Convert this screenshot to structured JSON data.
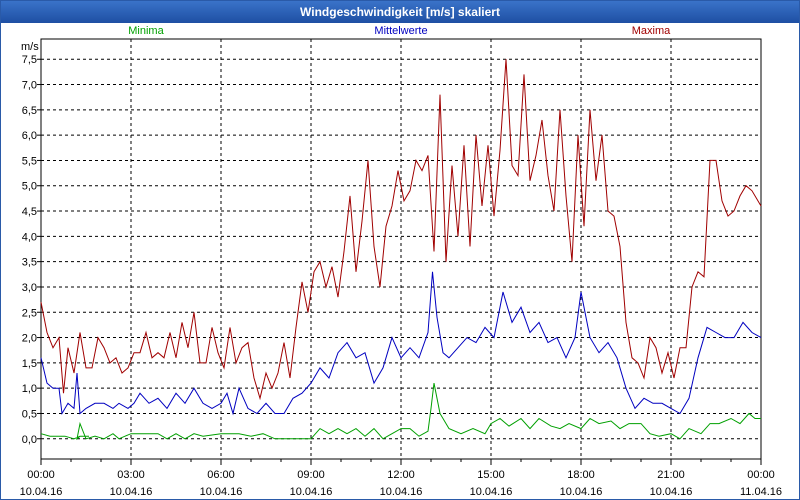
{
  "chart_data": {
    "type": "line",
    "title": "Windgeschwindigkeit [m/s] skaliert",
    "ylabel": "m/s",
    "ylim": [
      -0.4,
      7.9
    ],
    "yticks": [
      "0,0",
      "0,5",
      "1,0",
      "1,5",
      "2,0",
      "2,5",
      "3,0",
      "3,5",
      "4,0",
      "4,5",
      "5,0",
      "5,5",
      "6,0",
      "6,5",
      "7,0",
      "7,5"
    ],
    "ytick_values": [
      0,
      0.5,
      1,
      1.5,
      2,
      2.5,
      3,
      3.5,
      4,
      4.5,
      5,
      5.5,
      6,
      6.5,
      7,
      7.5
    ],
    "xlim": [
      0,
      24
    ],
    "xticks": [
      {
        "x": 0,
        "time": "00:00",
        "date": "10.04.16"
      },
      {
        "x": 3,
        "time": "03:00",
        "date": "10.04.16"
      },
      {
        "x": 6,
        "time": "06:00",
        "date": "10.04.16"
      },
      {
        "x": 9,
        "time": "09:00",
        "date": "10.04.16"
      },
      {
        "x": 12,
        "time": "12:00",
        "date": "10.04.16"
      },
      {
        "x": 15,
        "time": "15:00",
        "date": "10.04.16"
      },
      {
        "x": 18,
        "time": "18:00",
        "date": "10.04.16"
      },
      {
        "x": 21,
        "time": "21:00",
        "date": "10.04.16"
      },
      {
        "x": 24,
        "time": "00:00",
        "date": "11.04.16"
      }
    ],
    "grid": true,
    "legend": "top",
    "series": [
      {
        "name": "Minima",
        "color": "#00a000",
        "points": [
          [
            0,
            0.1
          ],
          [
            0.3,
            0.05
          ],
          [
            0.8,
            0.05
          ],
          [
            1.1,
            0
          ],
          [
            1.3,
            0.05
          ],
          [
            1.6,
            0.05
          ],
          [
            1.3,
            0.05
          ],
          [
            1.2,
            0
          ],
          [
            1.3,
            0.3
          ],
          [
            1.5,
            0
          ],
          [
            1.8,
            0.05
          ],
          [
            2.1,
            0
          ],
          [
            2.4,
            0.1
          ],
          [
            2.6,
            0
          ],
          [
            2.8,
            0.05
          ],
          [
            3,
            0.1
          ],
          [
            3.6,
            0.1
          ],
          [
            3.9,
            0.1
          ],
          [
            4.2,
            0
          ],
          [
            4.5,
            0.1
          ],
          [
            4.8,
            0
          ],
          [
            5.1,
            0.1
          ],
          [
            5.4,
            0.05
          ],
          [
            6,
            0.1
          ],
          [
            6.6,
            0.1
          ],
          [
            7,
            0.05
          ],
          [
            7.4,
            0.1
          ],
          [
            7.8,
            0
          ],
          [
            8.4,
            0
          ],
          [
            9,
            0
          ],
          [
            9.3,
            0.2
          ],
          [
            9.6,
            0.1
          ],
          [
            9.9,
            0.2
          ],
          [
            10.2,
            0.1
          ],
          [
            10.5,
            0.2
          ],
          [
            10.8,
            0.05
          ],
          [
            11.1,
            0.2
          ],
          [
            11.4,
            0
          ],
          [
            11.7,
            0.1
          ],
          [
            12,
            0.2
          ],
          [
            12.3,
            0.2
          ],
          [
            12.6,
            0.05
          ],
          [
            12.9,
            0.15
          ],
          [
            13.0,
            0.6
          ],
          [
            13.1,
            1.1
          ],
          [
            13.3,
            0.5
          ],
          [
            13.6,
            0.2
          ],
          [
            14,
            0.1
          ],
          [
            14.4,
            0.2
          ],
          [
            14.8,
            0.1
          ],
          [
            15,
            0.3
          ],
          [
            15.3,
            0.4
          ],
          [
            15.6,
            0.25
          ],
          [
            16,
            0.4
          ],
          [
            16.3,
            0.2
          ],
          [
            16.6,
            0.4
          ],
          [
            17,
            0.25
          ],
          [
            17.3,
            0.2
          ],
          [
            17.6,
            0.3
          ],
          [
            18,
            0.2
          ],
          [
            18.3,
            0.4
          ],
          [
            18.6,
            0.3
          ],
          [
            19,
            0.35
          ],
          [
            19.3,
            0.2
          ],
          [
            19.6,
            0.3
          ],
          [
            20,
            0.3
          ],
          [
            20.3,
            0.1
          ],
          [
            20.6,
            0.05
          ],
          [
            21,
            0.1
          ],
          [
            21.3,
            0
          ],
          [
            21.6,
            0.2
          ],
          [
            22,
            0.1
          ],
          [
            22.3,
            0.3
          ],
          [
            22.6,
            0.3
          ],
          [
            23,
            0.4
          ],
          [
            23.3,
            0.3
          ],
          [
            23.6,
            0.5
          ],
          [
            23.8,
            0.4
          ],
          [
            24,
            0.4
          ]
        ]
      },
      {
        "name": "Mittelwerte",
        "color": "#0000c0",
        "points": [
          [
            0,
            1.6
          ],
          [
            0.2,
            1.1
          ],
          [
            0.4,
            1.0
          ],
          [
            0.6,
            1.0
          ],
          [
            0.7,
            0.5
          ],
          [
            0.9,
            0.7
          ],
          [
            1.1,
            0.6
          ],
          [
            1.2,
            1.3
          ],
          [
            1.3,
            0.5
          ],
          [
            1.5,
            0.6
          ],
          [
            1.8,
            0.7
          ],
          [
            2.1,
            0.7
          ],
          [
            2.4,
            0.6
          ],
          [
            2.6,
            0.7
          ],
          [
            2.9,
            0.6
          ],
          [
            3.1,
            0.7
          ],
          [
            3.3,
            0.9
          ],
          [
            3.6,
            0.7
          ],
          [
            3.9,
            0.8
          ],
          [
            4.2,
            0.6
          ],
          [
            4.5,
            0.9
          ],
          [
            4.8,
            0.7
          ],
          [
            5.1,
            1.0
          ],
          [
            5.4,
            0.7
          ],
          [
            5.7,
            0.6
          ],
          [
            6.0,
            0.7
          ],
          [
            6.2,
            0.9
          ],
          [
            6.4,
            0.5
          ],
          [
            6.6,
            1.0
          ],
          [
            6.9,
            0.6
          ],
          [
            7.2,
            0.5
          ],
          [
            7.5,
            0.7
          ],
          [
            7.8,
            0.5
          ],
          [
            8.1,
            0.5
          ],
          [
            8.4,
            0.8
          ],
          [
            8.7,
            0.9
          ],
          [
            9,
            1.1
          ],
          [
            9.3,
            1.4
          ],
          [
            9.6,
            1.2
          ],
          [
            9.9,
            1.7
          ],
          [
            10.2,
            1.9
          ],
          [
            10.5,
            1.6
          ],
          [
            10.8,
            1.7
          ],
          [
            11.1,
            1.1
          ],
          [
            11.4,
            1.4
          ],
          [
            11.7,
            2.0
          ],
          [
            12,
            1.6
          ],
          [
            12.3,
            1.8
          ],
          [
            12.6,
            1.6
          ],
          [
            12.9,
            2.1
          ],
          [
            13.05,
            3.3
          ],
          [
            13.2,
            2.4
          ],
          [
            13.4,
            1.7
          ],
          [
            13.6,
            1.6
          ],
          [
            13.9,
            1.8
          ],
          [
            14.2,
            2.0
          ],
          [
            14.5,
            1.9
          ],
          [
            14.8,
            2.2
          ],
          [
            15.1,
            2.0
          ],
          [
            15.4,
            2.9
          ],
          [
            15.7,
            2.3
          ],
          [
            16,
            2.6
          ],
          [
            16.3,
            2.1
          ],
          [
            16.6,
            2.3
          ],
          [
            16.9,
            1.9
          ],
          [
            17.2,
            2.0
          ],
          [
            17.5,
            1.6
          ],
          [
            17.8,
            2.0
          ],
          [
            18.0,
            2.9
          ],
          [
            18.3,
            2.0
          ],
          [
            18.6,
            1.7
          ],
          [
            18.9,
            1.9
          ],
          [
            19.2,
            1.6
          ],
          [
            19.5,
            1.0
          ],
          [
            19.8,
            0.6
          ],
          [
            20.1,
            0.8
          ],
          [
            20.4,
            0.7
          ],
          [
            20.7,
            0.7
          ],
          [
            21,
            0.6
          ],
          [
            21.3,
            0.5
          ],
          [
            21.6,
            0.8
          ],
          [
            21.9,
            1.6
          ],
          [
            22.2,
            2.2
          ],
          [
            22.5,
            2.1
          ],
          [
            22.8,
            2.0
          ],
          [
            23.1,
            2.0
          ],
          [
            23.4,
            2.3
          ],
          [
            23.7,
            2.1
          ],
          [
            24,
            2.0
          ]
        ]
      },
      {
        "name": "Maxima",
        "color": "#a00000",
        "points": [
          [
            0,
            2.7
          ],
          [
            0.2,
            2.1
          ],
          [
            0.4,
            1.8
          ],
          [
            0.6,
            2.0
          ],
          [
            0.75,
            0.9
          ],
          [
            0.9,
            1.8
          ],
          [
            1.1,
            1.3
          ],
          [
            1.3,
            2.1
          ],
          [
            1.5,
            1.4
          ],
          [
            1.7,
            1.4
          ],
          [
            1.9,
            2.0
          ],
          [
            2.1,
            1.8
          ],
          [
            2.3,
            1.5
          ],
          [
            2.5,
            1.6
          ],
          [
            2.7,
            1.3
          ],
          [
            2.9,
            1.4
          ],
          [
            3.1,
            1.7
          ],
          [
            3.3,
            1.7
          ],
          [
            3.5,
            2.1
          ],
          [
            3.7,
            1.6
          ],
          [
            3.9,
            1.7
          ],
          [
            4.1,
            1.6
          ],
          [
            4.3,
            2.1
          ],
          [
            4.5,
            1.6
          ],
          [
            4.7,
            2.3
          ],
          [
            4.9,
            1.8
          ],
          [
            5.1,
            2.5
          ],
          [
            5.3,
            1.5
          ],
          [
            5.5,
            1.5
          ],
          [
            5.7,
            2.2
          ],
          [
            5.9,
            1.7
          ],
          [
            6.1,
            1.4
          ],
          [
            6.3,
            2.2
          ],
          [
            6.5,
            1.5
          ],
          [
            6.7,
            1.8
          ],
          [
            6.9,
            1.9
          ],
          [
            7.1,
            1.2
          ],
          [
            7.3,
            0.8
          ],
          [
            7.5,
            1.3
          ],
          [
            7.7,
            1.0
          ],
          [
            7.9,
            1.3
          ],
          [
            8.1,
            1.9
          ],
          [
            8.3,
            1.2
          ],
          [
            8.5,
            2.2
          ],
          [
            8.7,
            3.1
          ],
          [
            8.9,
            2.5
          ],
          [
            9.1,
            3.3
          ],
          [
            9.3,
            3.5
          ],
          [
            9.5,
            3.0
          ],
          [
            9.7,
            3.4
          ],
          [
            9.9,
            2.8
          ],
          [
            10.1,
            3.7
          ],
          [
            10.3,
            4.8
          ],
          [
            10.5,
            3.3
          ],
          [
            10.7,
            4.3
          ],
          [
            10.9,
            5.5
          ],
          [
            11.1,
            3.8
          ],
          [
            11.3,
            3.0
          ],
          [
            11.5,
            4.2
          ],
          [
            11.7,
            4.6
          ],
          [
            11.9,
            5.3
          ],
          [
            12.1,
            4.7
          ],
          [
            12.3,
            4.9
          ],
          [
            12.5,
            5.5
          ],
          [
            12.7,
            5.3
          ],
          [
            12.9,
            5.6
          ],
          [
            13.1,
            3.7
          ],
          [
            13.3,
            6.8
          ],
          [
            13.5,
            3.5
          ],
          [
            13.7,
            5.4
          ],
          [
            13.9,
            4.0
          ],
          [
            14.1,
            5.8
          ],
          [
            14.3,
            3.8
          ],
          [
            14.5,
            6.0
          ],
          [
            14.7,
            4.6
          ],
          [
            14.9,
            5.8
          ],
          [
            15.1,
            4.4
          ],
          [
            15.3,
            5.7
          ],
          [
            15.5,
            7.5
          ],
          [
            15.7,
            5.4
          ],
          [
            15.9,
            5.2
          ],
          [
            16.1,
            7.2
          ],
          [
            16.3,
            5.1
          ],
          [
            16.5,
            5.6
          ],
          [
            16.7,
            6.3
          ],
          [
            16.9,
            5.2
          ],
          [
            17.1,
            4.5
          ],
          [
            17.3,
            6.5
          ],
          [
            17.5,
            4.8
          ],
          [
            17.7,
            3.5
          ],
          [
            17.9,
            6.0
          ],
          [
            18.1,
            4.2
          ],
          [
            18.3,
            6.5
          ],
          [
            18.5,
            5.1
          ],
          [
            18.7,
            6.0
          ],
          [
            18.9,
            4.5
          ],
          [
            19.1,
            4.4
          ],
          [
            19.3,
            3.8
          ],
          [
            19.5,
            2.3
          ],
          [
            19.7,
            1.6
          ],
          [
            19.9,
            1.5
          ],
          [
            20.1,
            1.2
          ],
          [
            20.3,
            2.0
          ],
          [
            20.5,
            1.8
          ],
          [
            20.7,
            1.3
          ],
          [
            20.9,
            1.7
          ],
          [
            21.1,
            1.2
          ],
          [
            21.3,
            1.8
          ],
          [
            21.5,
            1.8
          ],
          [
            21.7,
            3.0
          ],
          [
            21.9,
            3.3
          ],
          [
            22.1,
            3.2
          ],
          [
            22.3,
            5.5
          ],
          [
            22.5,
            5.5
          ],
          [
            22.7,
            4.7
          ],
          [
            22.9,
            4.4
          ],
          [
            23.1,
            4.5
          ],
          [
            23.3,
            4.8
          ],
          [
            23.5,
            5.0
          ],
          [
            23.7,
            4.9
          ],
          [
            24,
            4.6
          ]
        ]
      }
    ]
  }
}
